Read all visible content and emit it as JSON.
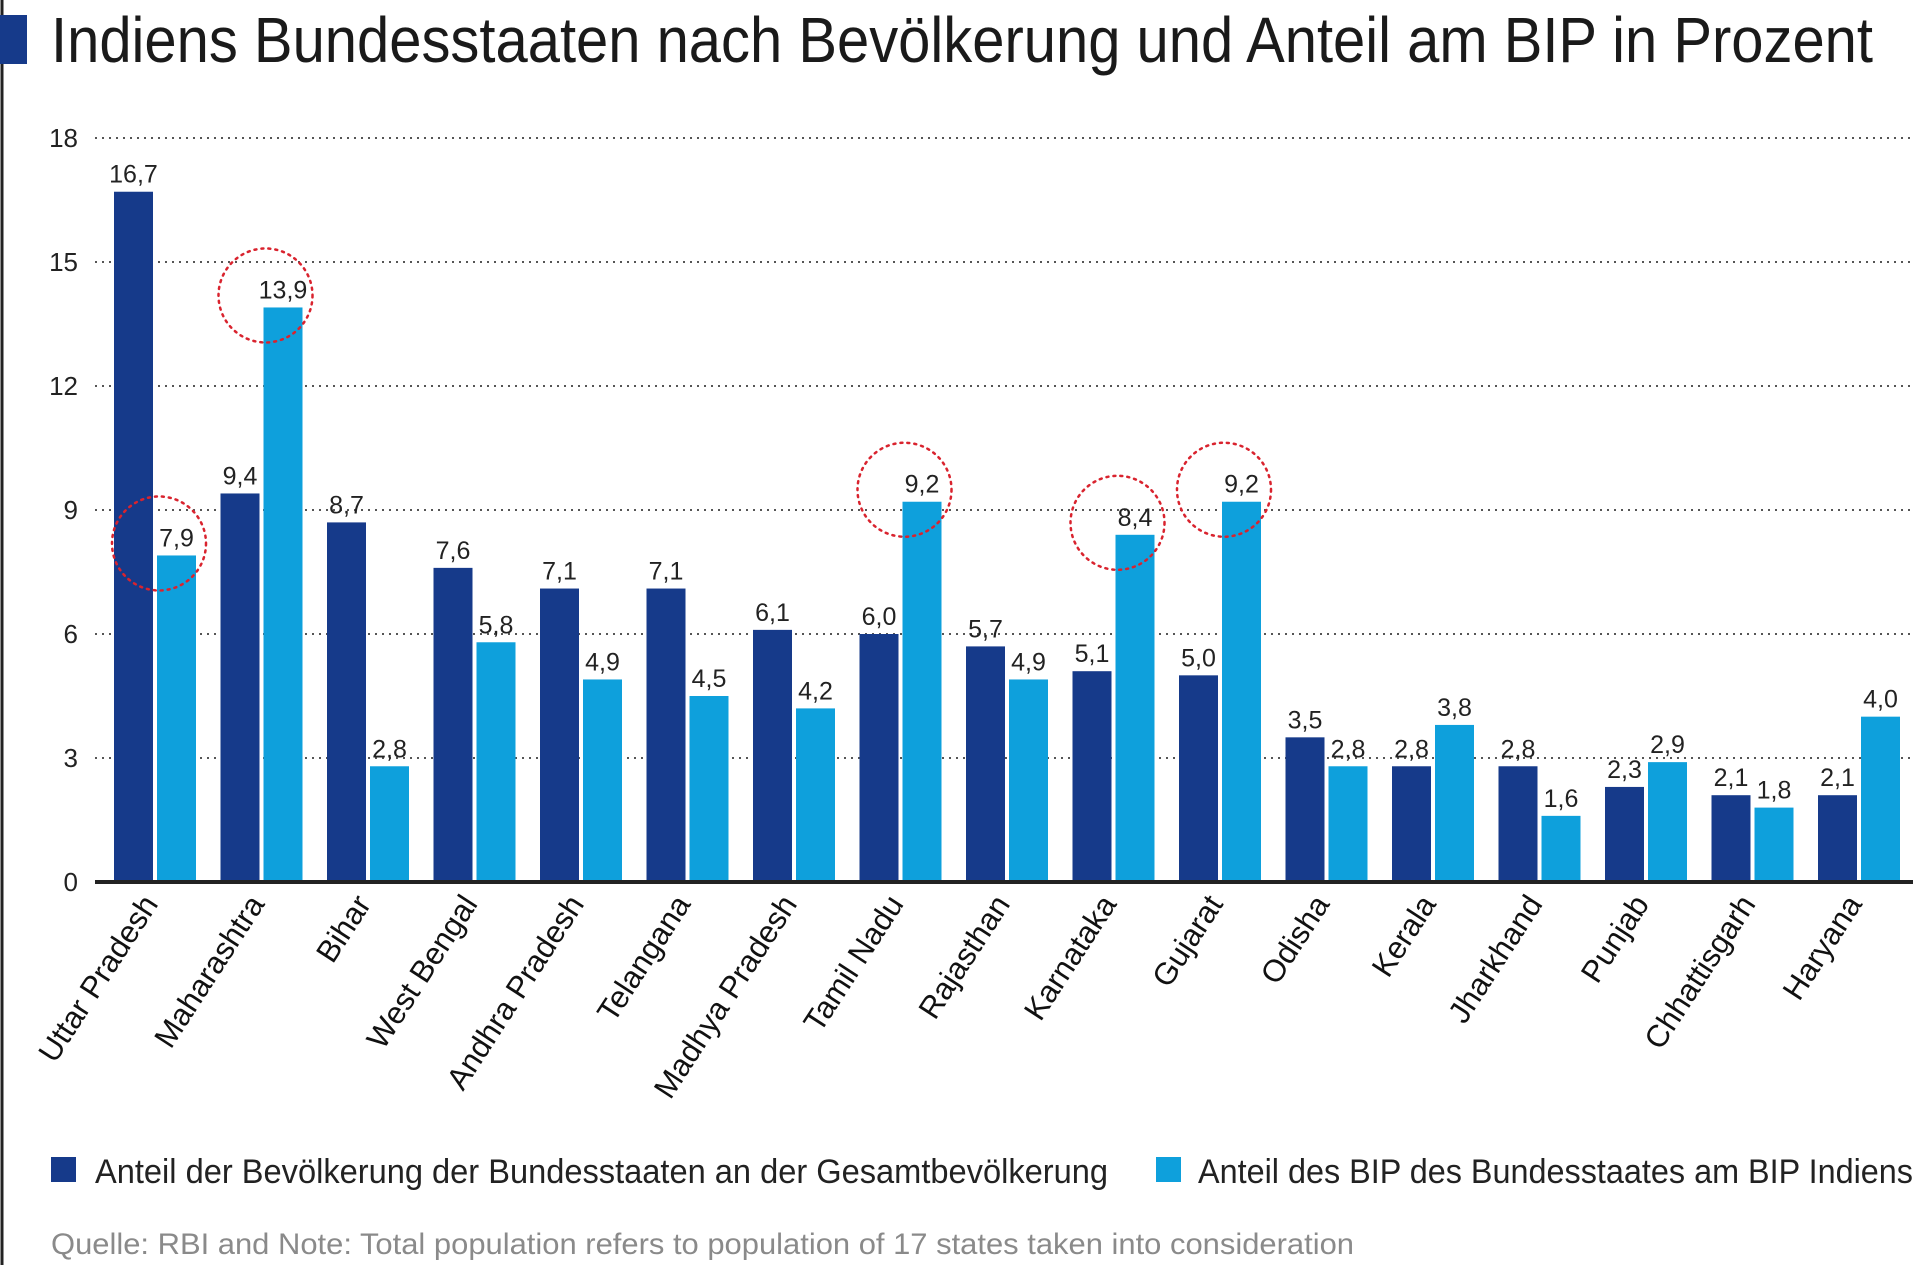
{
  "chart_data": {
    "type": "bar",
    "title": "Indiens Bundesstaaten nach Bevölkerung und Anteil am BIP in Prozent",
    "categories": [
      "Uttar Pradesh",
      "Maharashtra",
      "Bihar",
      "West Bengal",
      "Andhra Pradesh",
      "Telangana",
      "Madhya Pradesh",
      "Tamil Nadu",
      "Rajasthan",
      "Karnataka",
      "Gujarat",
      "Odisha",
      "Kerala",
      "Jharkhand",
      "Punjab",
      "Chhattisgarh",
      "Haryana"
    ],
    "series": [
      {
        "name": "Anteil der Bevölkerung der Bundesstaaten an der Gesamtbevölkerung",
        "color": "#163a8a",
        "values": [
          16.7,
          9.4,
          8.7,
          7.6,
          7.1,
          7.1,
          6.1,
          6.0,
          5.7,
          5.1,
          5.0,
          3.5,
          2.8,
          2.8,
          2.3,
          2.1,
          2.1
        ],
        "labels": [
          "16,7",
          "9,4",
          "8,7",
          "7,6",
          "7,1",
          "7,1",
          "6,1",
          "6,0",
          "5,7",
          "5,1",
          "5,0",
          "3,5",
          "2,8",
          "2,8",
          "2,3",
          "2,1",
          "2,1"
        ]
      },
      {
        "name": "Anteil des BIP des Bundesstaates am BIP Indiens",
        "color": "#0ea0dc",
        "values": [
          7.9,
          13.9,
          2.8,
          5.8,
          4.9,
          4.5,
          4.2,
          9.2,
          4.9,
          8.4,
          9.2,
          2.8,
          3.8,
          1.6,
          2.9,
          1.8,
          4.0
        ],
        "labels": [
          "7,9",
          "13,9",
          "2,8",
          "5,8",
          "4,9",
          "4,5",
          "4,2",
          "9,2",
          "4,9",
          "8,4",
          "9,2",
          "2,8",
          "3,8",
          "1,6",
          "2,9",
          "1,8",
          "4,0"
        ]
      }
    ],
    "highlighted_categories": [
      "Uttar Pradesh",
      "Maharashtra",
      "Tamil Nadu",
      "Karnataka",
      "Gujarat"
    ],
    "highlight_color": "#d9232e",
    "ylim": [
      0,
      18
    ],
    "yticks": [
      "0",
      "3",
      "6",
      "9",
      "12",
      "15",
      "18"
    ],
    "grid": true,
    "legend": "bottom",
    "xlabel": "",
    "ylabel": "",
    "source": "Quelle: RBI and Note: Total population refers to population of 17 states taken into consideration"
  }
}
